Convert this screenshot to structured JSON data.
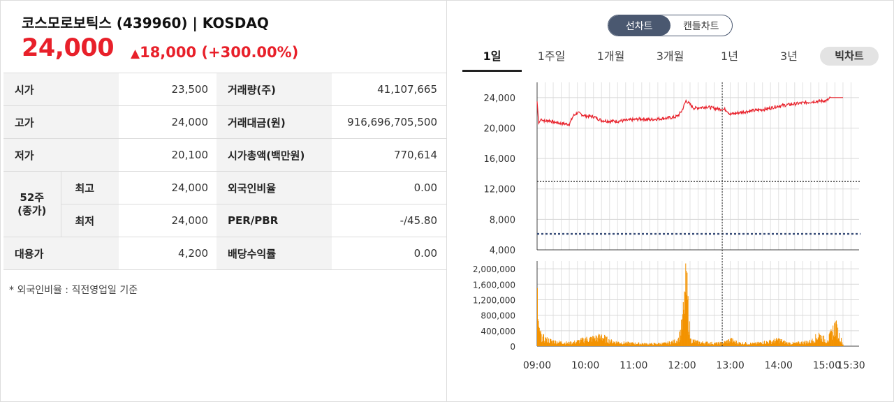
{
  "stock": {
    "name_line": "코스모로보틱스 (439960) | KOSDAQ",
    "price": "24,000",
    "change": "18,000 (+300.00%)",
    "change_symbol": "▲"
  },
  "info": {
    "rows": [
      {
        "label": "시가",
        "value": "23,500",
        "label2": "거래량(주)",
        "value2": "41,107,665"
      },
      {
        "label": "고가",
        "value": "24,000",
        "label2": "거래대금(원)",
        "value2": "916,696,705,500"
      },
      {
        "label": "저가",
        "value": "20,100",
        "label2": "시가총액(백만원)",
        "value2": "770,614"
      },
      {
        "label": "최고",
        "value": "24,000",
        "label2": "외국인비율",
        "value2": "0.00"
      },
      {
        "label": "최저",
        "value": "24,000",
        "label2": "PER/PBR",
        "value2": "-/45.80"
      },
      {
        "label": "대용가",
        "value": "4,200",
        "label2": "배당수익률",
        "value2": "0.00"
      }
    ],
    "week52_label_1": "52주",
    "week52_label_2": "(종가)",
    "footnote": "* 외국인비율 : 직전영업일 기준"
  },
  "chart_toggle": {
    "line": "선차트",
    "candle": "캔들차트",
    "selected": "선차트"
  },
  "period_tabs": {
    "items": [
      "1일",
      "1주일",
      "1개월",
      "3개월",
      "1년",
      "3년"
    ],
    "selected": "1일",
    "big_chart": "빅차트"
  },
  "colors": {
    "up": "#e8202a",
    "price_line": "#e8202a",
    "volume": "#f39200",
    "toggle": "#4a5870"
  },
  "chart_data": [
    {
      "type": "line",
      "name": "price",
      "ylim": [
        4000,
        24000
      ],
      "yticks": [
        "24,000",
        "20,000",
        "16,000",
        "12,000",
        "8,000",
        "4,000"
      ],
      "ytick_values": [
        24000,
        20000,
        16000,
        12000,
        8000,
        4000
      ],
      "reference_lines": [
        13000,
        6100
      ],
      "x": [
        "09:00",
        "09:02",
        "09:05",
        "09:10",
        "09:15",
        "09:20",
        "09:30",
        "09:40",
        "09:45",
        "09:50",
        "10:00",
        "10:10",
        "10:20",
        "10:30",
        "10:40",
        "10:50",
        "11:00",
        "11:10",
        "11:20",
        "11:30",
        "11:40",
        "11:50",
        "11:55",
        "12:00",
        "12:05",
        "12:15",
        "12:30",
        "12:45",
        "12:50",
        "12:55",
        "13:00",
        "13:15",
        "13:30",
        "13:45",
        "14:00",
        "14:15",
        "14:30",
        "14:45",
        "15:00",
        "15:05",
        "15:20"
      ],
      "values": [
        23500,
        20600,
        21200,
        20900,
        21000,
        20800,
        20600,
        20500,
        21600,
        22000,
        21600,
        21500,
        21000,
        20900,
        20900,
        21000,
        21100,
        21200,
        21100,
        21200,
        21300,
        21400,
        21600,
        22300,
        23600,
        22600,
        22800,
        22500,
        22500,
        22400,
        21800,
        22100,
        22300,
        22500,
        22900,
        23100,
        23300,
        23500,
        23600,
        24000,
        24000
      ],
      "crosshair_x": "12:50"
    },
    {
      "type": "bar",
      "name": "volume",
      "ylim": [
        0,
        2000000
      ],
      "yticks": [
        "2,000,000",
        "1,600,000",
        "1,200,000",
        "800,000",
        "400,000",
        "0"
      ],
      "ytick_values": [
        2000000,
        1600000,
        1200000,
        800000,
        400000,
        0
      ],
      "xticks": [
        "09:00",
        "10:00",
        "11:00",
        "12:00",
        "13:00",
        "14:00",
        "15:00",
        "15:30"
      ],
      "x": [
        "09:00",
        "09:01",
        "09:02",
        "09:05",
        "09:10",
        "09:20",
        "09:30",
        "09:40",
        "09:50",
        "10:00",
        "10:10",
        "10:20",
        "10:30",
        "10:40",
        "10:50",
        "11:00",
        "11:10",
        "11:20",
        "11:30",
        "11:40",
        "11:50",
        "11:55",
        "12:00",
        "12:05",
        "12:10",
        "12:20",
        "12:30",
        "12:40",
        "12:50",
        "13:00",
        "13:10",
        "13:20",
        "13:30",
        "13:40",
        "13:50",
        "14:00",
        "14:10",
        "14:20",
        "14:30",
        "14:40",
        "14:50",
        "15:00",
        "15:10",
        "15:20"
      ],
      "values": [
        1500000,
        700000,
        450000,
        300000,
        220000,
        150000,
        120000,
        100000,
        150000,
        220000,
        250000,
        300000,
        160000,
        120000,
        100000,
        90000,
        80000,
        70000,
        80000,
        90000,
        150000,
        200000,
        700000,
        2000000,
        200000,
        120000,
        110000,
        90000,
        100000,
        200000,
        100000,
        90000,
        80000,
        120000,
        150000,
        200000,
        100000,
        90000,
        120000,
        150000,
        350000,
        150000,
        650000,
        30000
      ]
    }
  ]
}
